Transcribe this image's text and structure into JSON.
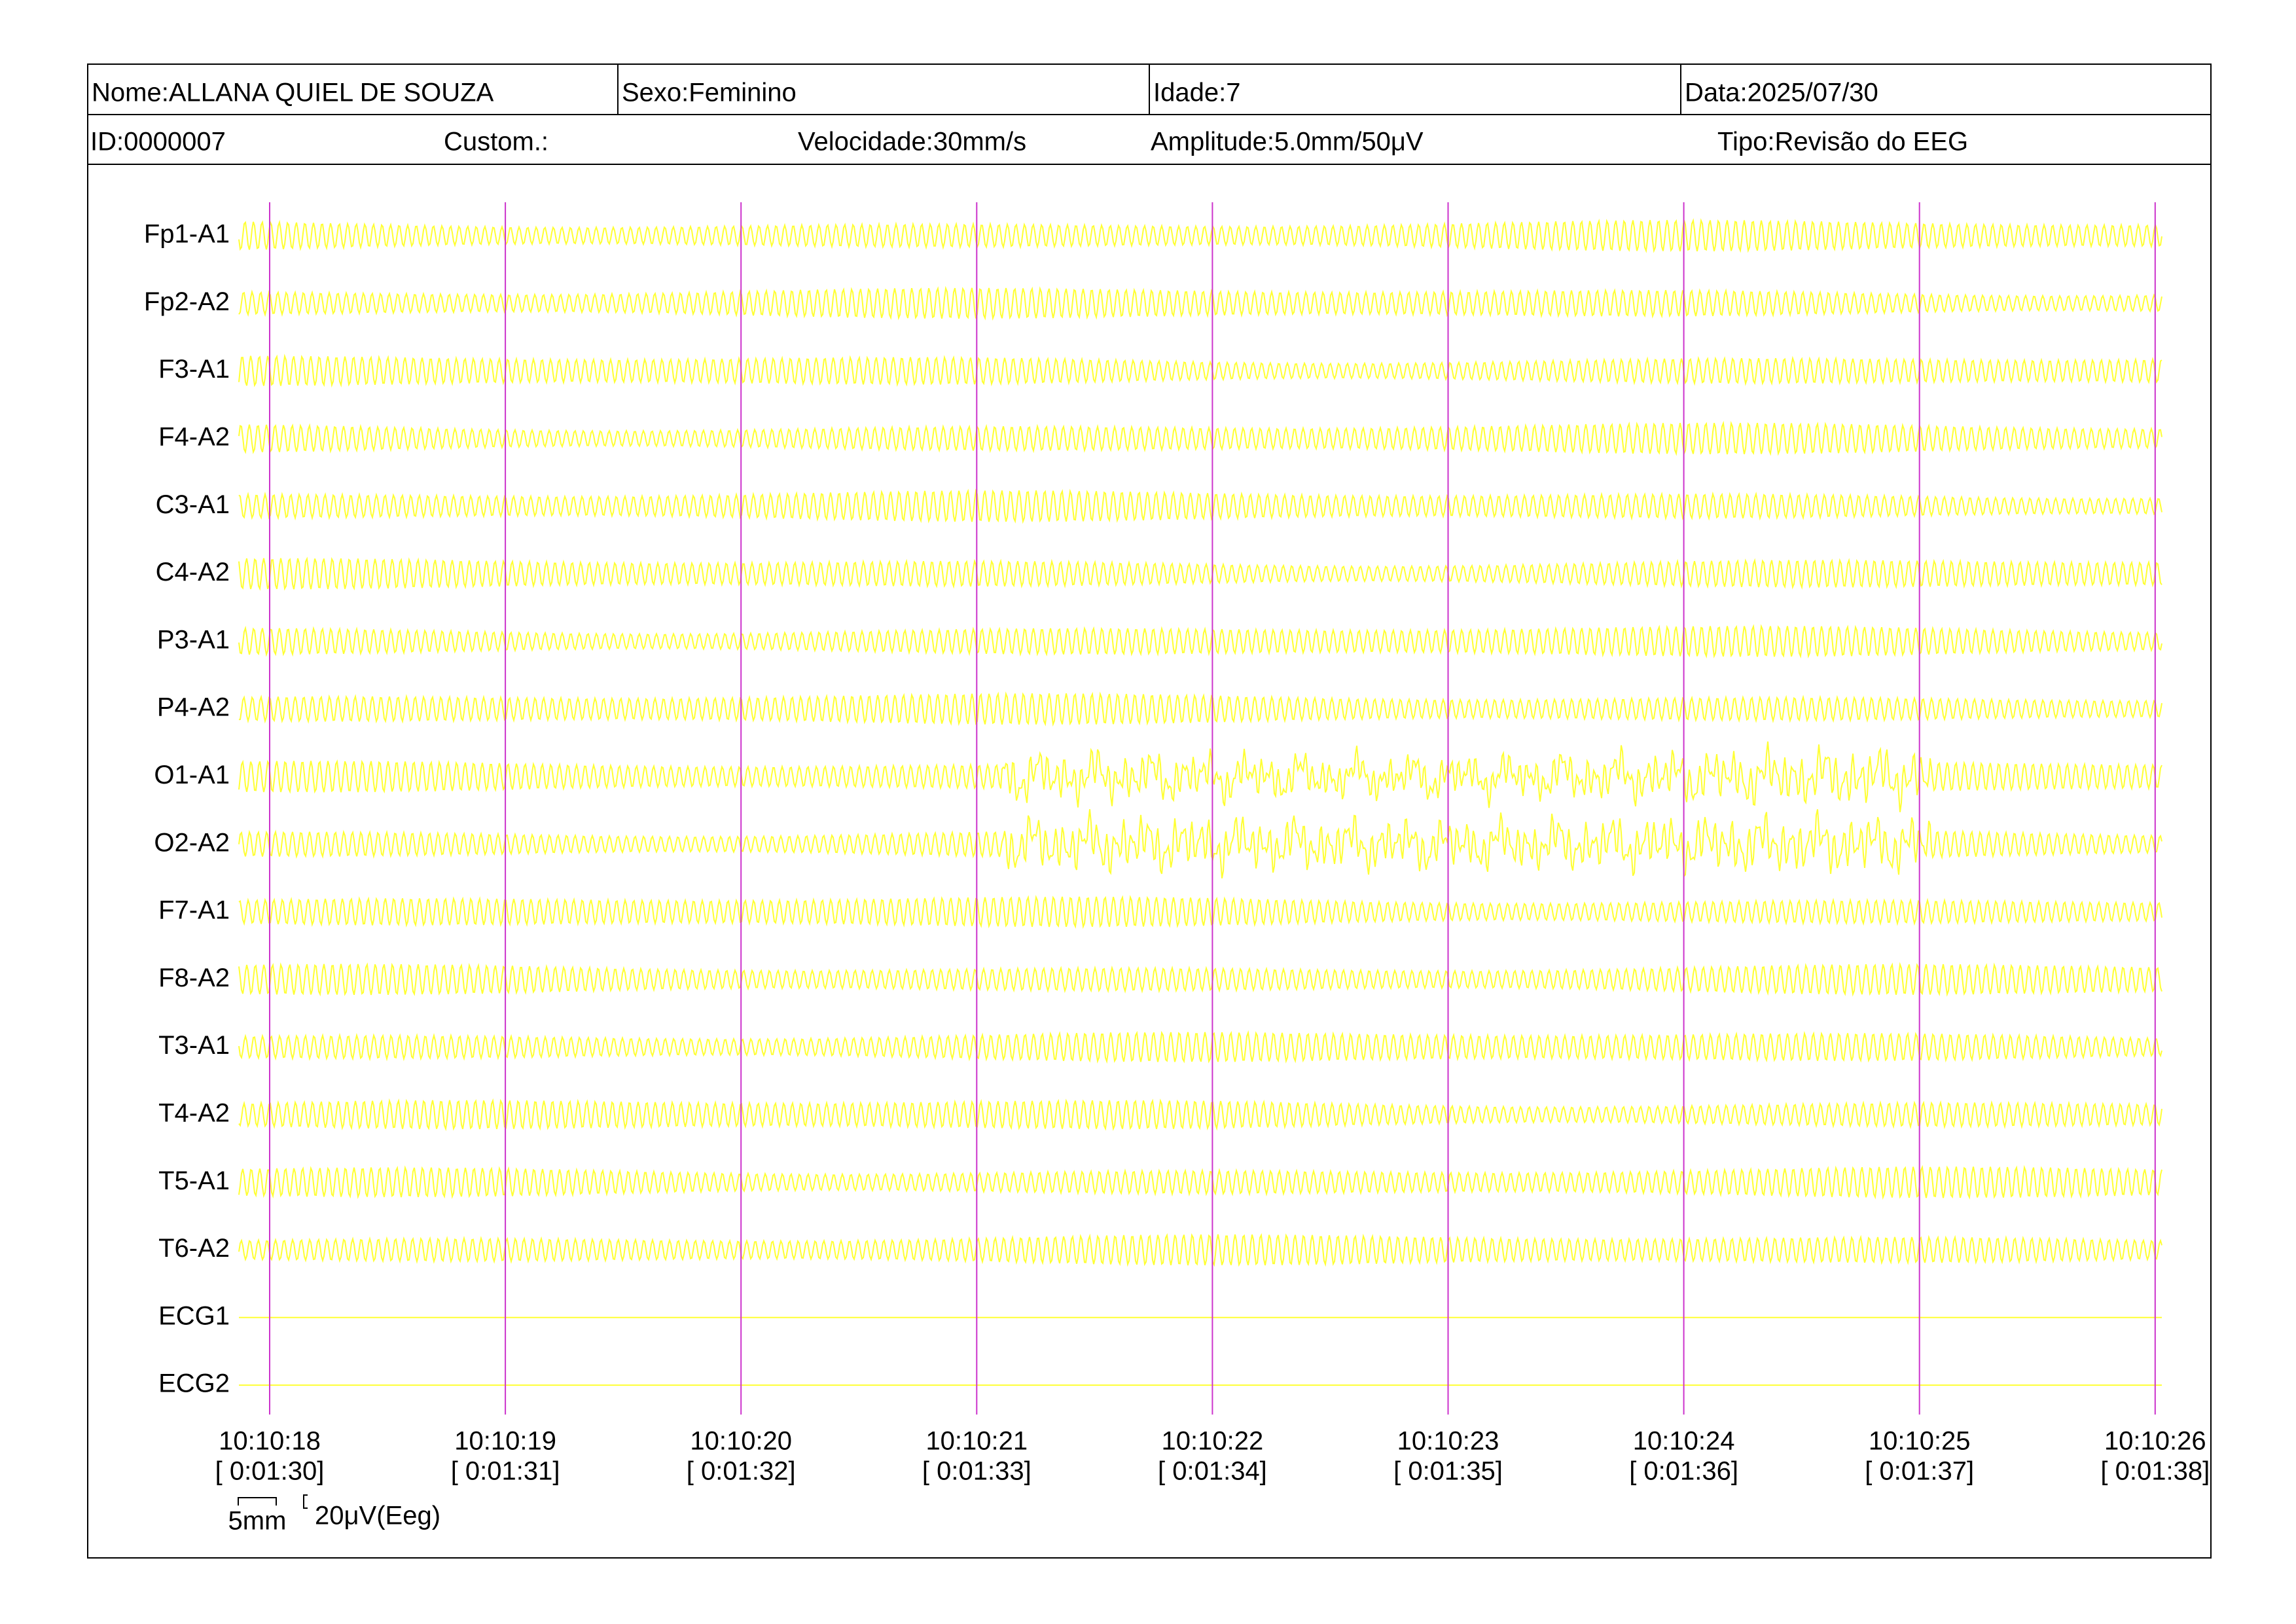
{
  "header": {
    "row1": [
      "Nome:ALLANA QUIEL DE SOUZA",
      "Sexo:Feminino",
      "Idade:7",
      "Data:2025/07/30"
    ],
    "row2": [
      "ID:0000007",
      "Custom.:",
      "Velocidade:30mm/s",
      "Amplitude:5.0mm/50μV",
      "Tipo:Revisão do EEG"
    ]
  },
  "channels": [
    "Fp1-A1",
    "Fp2-A2",
    "F3-A1",
    "F4-A2",
    "C3-A1",
    "C4-A2",
    "P3-A1",
    "P4-A2",
    "O1-A1",
    "O2-A2",
    "F7-A1",
    "F8-A2",
    "T3-A1",
    "T4-A2",
    "T5-A1",
    "T6-A2",
    "ECG1",
    "ECG2"
  ],
  "time_marks": [
    {
      "time": "10:10:18",
      "elapsed": "[ 0:01:30]"
    },
    {
      "time": "10:10:19",
      "elapsed": "[ 0:01:31]"
    },
    {
      "time": "10:10:20",
      "elapsed": "[ 0:01:32]"
    },
    {
      "time": "10:10:21",
      "elapsed": "[ 0:01:33]"
    },
    {
      "time": "10:10:22",
      "elapsed": "[ 0:01:34]"
    },
    {
      "time": "10:10:23",
      "elapsed": "[ 0:01:35]"
    },
    {
      "time": "10:10:24",
      "elapsed": "[ 0:01:36]"
    },
    {
      "time": "10:10:25",
      "elapsed": "[ 0:01:37]"
    },
    {
      "time": "10:10:26",
      "elapsed": "[ 0:01:38]"
    }
  ],
  "scale": {
    "width": "5mm",
    "amplitude": "20μV(Eeg)"
  }
}
